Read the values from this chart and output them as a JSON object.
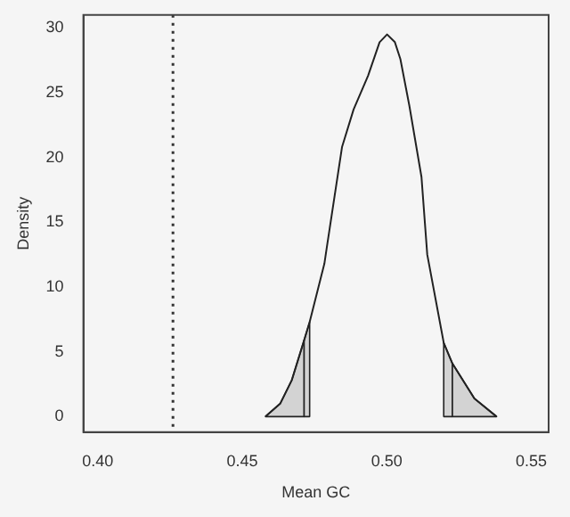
{
  "chart_data": {
    "type": "line",
    "xlabel": "Mean GC",
    "ylabel": "Density",
    "xlim": [
      0.395,
      0.556
    ],
    "ylim": [
      -1.2,
      31
    ],
    "xticks": [
      {
        "value": 0.4,
        "label": "0.40"
      },
      {
        "value": 0.45,
        "label": "0.45"
      },
      {
        "value": 0.5,
        "label": "0.50"
      },
      {
        "value": 0.55,
        "label": "0.55"
      }
    ],
    "yticks": [
      0,
      5,
      10,
      15,
      20,
      25,
      30
    ],
    "grid": false,
    "legend": false,
    "marker": "none",
    "line_style": "solid",
    "ref_lines": [
      {
        "axis": "x",
        "value": 0.426,
        "line_style": "dotted",
        "color": "#333333"
      }
    ],
    "series": [
      {
        "type": "area",
        "color": "#d3d3d3",
        "x": [
          0.458,
          0.4631,
          0.4671,
          0.4714
        ],
        "values": [
          0,
          1.0,
          2.8,
          5.9
        ]
      },
      {
        "type": "area",
        "color": "#d3d3d3",
        "x": [
          0.4714,
          0.4733
        ],
        "values": [
          5.9,
          7.3
        ]
      },
      {
        "type": "area",
        "color": "#d3d3d3",
        "x": [
          0.5197,
          0.5227
        ],
        "values": [
          5.7,
          4.1
        ]
      },
      {
        "type": "area",
        "color": "#d3d3d3",
        "x": [
          0.5227,
          0.5303,
          0.538
        ],
        "values": [
          4.1,
          1.4,
          0
        ]
      },
      {
        "color": "#222222",
        "x": [
          0.458,
          0.4631,
          0.4671,
          0.4714,
          0.4733,
          0.4784,
          0.4792,
          0.4845,
          0.4885,
          0.4935,
          0.4975,
          0.5001,
          0.5028,
          0.5047,
          0.5078,
          0.512,
          0.514,
          0.5197,
          0.5227,
          0.5303,
          0.538
        ],
        "values": [
          0,
          1.0,
          2.8,
          5.9,
          7.3,
          11.8,
          13,
          20.8,
          23.7,
          26.3,
          28.9,
          29.5,
          28.9,
          27.6,
          24,
          18.5,
          12.5,
          5.7,
          4.1,
          1.4,
          0
        ]
      }
    ]
  }
}
